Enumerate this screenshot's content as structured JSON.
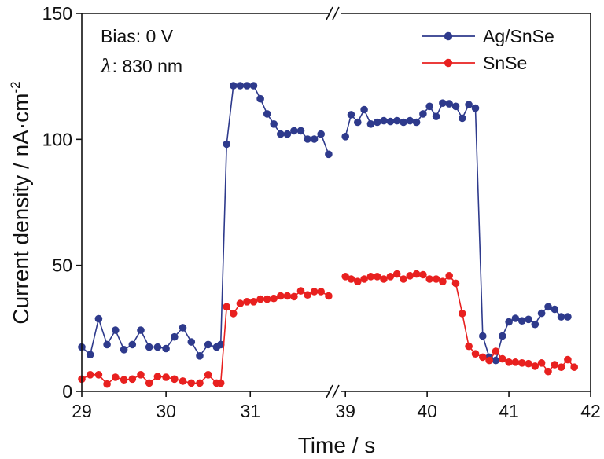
{
  "chart_data": {
    "type": "line",
    "title": "",
    "xlabel": "Time / s",
    "ylabel": "Current density / nA·cm",
    "ylabel_superscript": "-2",
    "ylim": [
      0,
      150
    ],
    "x_axis_break": true,
    "x_segments": [
      {
        "range": [
          29,
          31.95
        ],
        "ticks": [
          29,
          30,
          31
        ]
      },
      {
        "range": [
          38.95,
          42
        ],
        "ticks": [
          39,
          40,
          41,
          42
        ]
      }
    ],
    "y_ticks": [
      0,
      50,
      100,
      150
    ],
    "x_tick_labels": [
      "29",
      "30",
      "31",
      "39",
      "40",
      "41",
      "42"
    ],
    "y_tick_labels": [
      "0",
      "50",
      "100",
      "150"
    ],
    "annotations": {
      "bias": "Bias: 0 V",
      "lambda_symbol": "λ",
      "lambda_value": ": 830 nm"
    },
    "legend_position": "top-right",
    "series": [
      {
        "name": "Ag/SnSe",
        "color": "#2e3a8c",
        "points": [
          [
            29.0,
            17.6
          ],
          [
            29.1,
            14.6
          ],
          [
            29.2,
            28.8
          ],
          [
            29.3,
            18.6
          ],
          [
            29.4,
            24.3
          ],
          [
            29.5,
            16.6
          ],
          [
            29.6,
            18.6
          ],
          [
            29.7,
            24.3
          ],
          [
            29.8,
            17.6
          ],
          [
            29.9,
            17.6
          ],
          [
            30.0,
            17.0
          ],
          [
            30.1,
            21.6
          ],
          [
            30.2,
            25.3
          ],
          [
            30.3,
            19.6
          ],
          [
            30.4,
            14.1
          ],
          [
            30.5,
            18.6
          ],
          [
            30.6,
            17.6
          ],
          [
            30.65,
            18.6
          ],
          [
            30.72,
            98.1
          ],
          [
            30.8,
            121.3
          ],
          [
            30.88,
            121.3
          ],
          [
            30.96,
            121.3
          ],
          [
            31.04,
            121.3
          ],
          [
            31.12,
            116.1
          ],
          [
            31.2,
            110.1
          ],
          [
            31.28,
            106.1
          ],
          [
            31.36,
            102.1
          ],
          [
            31.44,
            102.1
          ],
          [
            31.52,
            103.4
          ],
          [
            31.6,
            103.4
          ],
          [
            31.68,
            100.1
          ],
          [
            31.76,
            100.1
          ],
          [
            31.84,
            102.1
          ],
          [
            31.93,
            94.1
          ],
          [
            39.0,
            101.1
          ],
          [
            39.07,
            109.8
          ],
          [
            39.15,
            106.8
          ],
          [
            39.23,
            111.8
          ],
          [
            39.31,
            106.1
          ],
          [
            39.39,
            106.8
          ],
          [
            39.47,
            107.4
          ],
          [
            39.55,
            107.1
          ],
          [
            39.63,
            107.4
          ],
          [
            39.71,
            106.8
          ],
          [
            39.79,
            107.4
          ],
          [
            39.87,
            106.8
          ],
          [
            39.95,
            110.1
          ],
          [
            40.03,
            113.1
          ],
          [
            40.11,
            109.1
          ],
          [
            40.19,
            114.4
          ],
          [
            40.27,
            114.1
          ],
          [
            40.35,
            113.1
          ],
          [
            40.43,
            108.4
          ],
          [
            40.51,
            113.8
          ],
          [
            40.59,
            112.4
          ],
          [
            40.68,
            22.0
          ],
          [
            40.76,
            13.6
          ],
          [
            40.84,
            12.3
          ],
          [
            40.92,
            22.0
          ],
          [
            41.0,
            27.6
          ],
          [
            41.08,
            29.0
          ],
          [
            41.16,
            28.0
          ],
          [
            41.24,
            28.6
          ],
          [
            41.32,
            26.6
          ],
          [
            41.4,
            31.0
          ],
          [
            41.48,
            33.6
          ],
          [
            41.56,
            32.6
          ],
          [
            41.64,
            29.6
          ],
          [
            41.72,
            29.6
          ]
        ]
      },
      {
        "name": "SnSe",
        "color": "#e8201f",
        "points": [
          [
            29.0,
            4.9
          ],
          [
            29.1,
            6.6
          ],
          [
            29.2,
            6.6
          ],
          [
            29.3,
            2.9
          ],
          [
            29.4,
            5.6
          ],
          [
            29.5,
            4.6
          ],
          [
            29.6,
            4.9
          ],
          [
            29.7,
            6.6
          ],
          [
            29.8,
            3.3
          ],
          [
            29.9,
            5.9
          ],
          [
            30.0,
            5.6
          ],
          [
            30.1,
            4.9
          ],
          [
            30.2,
            4.1
          ],
          [
            30.3,
            3.3
          ],
          [
            30.4,
            3.3
          ],
          [
            30.5,
            6.6
          ],
          [
            30.6,
            3.3
          ],
          [
            30.65,
            3.3
          ],
          [
            30.72,
            33.6
          ],
          [
            30.8,
            30.9
          ],
          [
            30.88,
            34.9
          ],
          [
            30.96,
            35.6
          ],
          [
            31.04,
            35.6
          ],
          [
            31.12,
            36.6
          ],
          [
            31.2,
            36.6
          ],
          [
            31.28,
            36.9
          ],
          [
            31.36,
            37.9
          ],
          [
            31.44,
            37.9
          ],
          [
            31.52,
            37.6
          ],
          [
            31.6,
            39.9
          ],
          [
            31.68,
            38.3
          ],
          [
            31.76,
            39.6
          ],
          [
            31.84,
            39.6
          ],
          [
            31.93,
            37.9
          ],
          [
            39.0,
            45.6
          ],
          [
            39.07,
            44.6
          ],
          [
            39.15,
            43.6
          ],
          [
            39.23,
            44.6
          ],
          [
            39.31,
            45.6
          ],
          [
            39.39,
            45.6
          ],
          [
            39.47,
            44.6
          ],
          [
            39.55,
            45.6
          ],
          [
            39.63,
            46.6
          ],
          [
            39.71,
            44.6
          ],
          [
            39.79,
            45.9
          ],
          [
            39.87,
            46.6
          ],
          [
            39.95,
            46.3
          ],
          [
            40.03,
            44.6
          ],
          [
            40.11,
            44.6
          ],
          [
            40.19,
            43.6
          ],
          [
            40.27,
            45.9
          ],
          [
            40.35,
            42.9
          ],
          [
            40.43,
            30.9
          ],
          [
            40.51,
            17.9
          ],
          [
            40.59,
            14.9
          ],
          [
            40.68,
            13.6
          ],
          [
            40.76,
            12.3
          ],
          [
            40.84,
            15.9
          ],
          [
            40.92,
            12.9
          ],
          [
            41.0,
            11.6
          ],
          [
            41.08,
            11.6
          ],
          [
            41.16,
            11.3
          ],
          [
            41.24,
            11.0
          ],
          [
            41.32,
            10.0
          ],
          [
            41.4,
            11.3
          ],
          [
            41.48,
            7.9
          ],
          [
            41.56,
            10.6
          ],
          [
            41.64,
            9.6
          ],
          [
            41.72,
            12.6
          ],
          [
            41.8,
            9.6
          ]
        ]
      }
    ]
  }
}
